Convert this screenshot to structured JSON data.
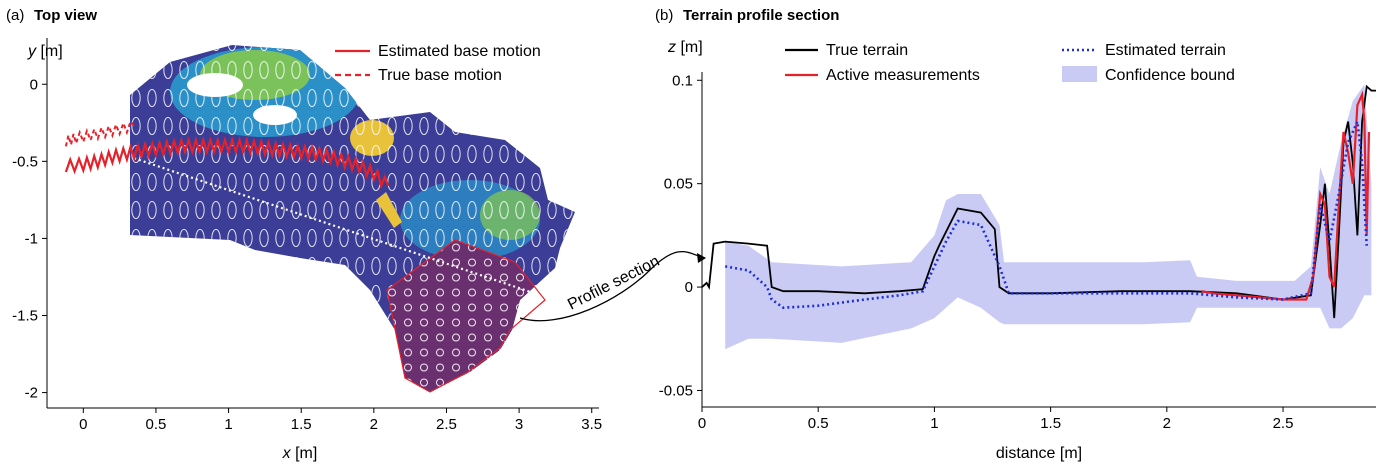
{
  "panels": {
    "a": {
      "prefix": "(a)",
      "title": "Top view",
      "xlabel_var": "x",
      "xlabel_unit": "[m]",
      "ylabel_var": "y",
      "ylabel_unit": "[m]",
      "annotation": "Profile section",
      "legend": [
        {
          "label": "Estimated base motion",
          "style": "solid"
        },
        {
          "label": "True base motion",
          "style": "dashed"
        }
      ]
    },
    "b": {
      "prefix": "(b)",
      "title": "Terrain profile section",
      "xlabel": "distance [m]",
      "ylabel_var": "z",
      "ylabel_unit": "[m]",
      "legend": [
        {
          "label": "True terrain",
          "style": "solid"
        },
        {
          "label": "Estimated terrain",
          "style": "dotted"
        },
        {
          "label": "Active measurements",
          "style": "solid"
        },
        {
          "label": "Confidence bound",
          "style": "band"
        }
      ]
    }
  },
  "colors": {
    "red": "#e8202a",
    "black": "#000000",
    "blue": "#1f2fd6",
    "band": "#c9cbf5",
    "map_low": "#3b3d96",
    "map_mid": "#2b8fc8",
    "map_high": "#7cc25a",
    "map_peak": "#e8c23a",
    "patch": "#6a2f6e"
  },
  "chart_data": [
    {
      "type": "line",
      "panel": "a",
      "title": "Top view",
      "xlabel": "x [m]",
      "ylabel": "y [m]",
      "xlim": [
        -0.25,
        3.55
      ],
      "ylim": [
        -2.1,
        0.3
      ],
      "xticks": [
        "0",
        "0.5",
        "1",
        "1.5",
        "2",
        "2.5",
        "3",
        "3.5"
      ],
      "yticks": [
        "0",
        "-0.5",
        "-1",
        "-1.5",
        "-2"
      ],
      "grid": false,
      "legend_position": "top-right",
      "series": [
        {
          "name": "Estimated base motion",
          "x": [
            -0.12,
            0.0,
            0.1,
            0.2,
            0.3,
            0.4,
            0.5,
            0.6,
            0.7,
            0.8,
            0.9,
            1.0,
            1.1,
            1.2,
            1.3,
            1.4,
            1.5,
            1.6,
            1.7,
            1.8,
            1.9,
            2.0,
            2.1
          ],
          "y": [
            -0.53,
            -0.52,
            -0.5,
            -0.47,
            -0.45,
            -0.43,
            -0.42,
            -0.41,
            -0.4,
            -0.4,
            -0.4,
            -0.4,
            -0.4,
            -0.41,
            -0.42,
            -0.43,
            -0.44,
            -0.45,
            -0.47,
            -0.5,
            -0.53,
            -0.58,
            -0.66
          ]
        },
        {
          "name": "True base motion",
          "x": [
            -0.12,
            -0.05,
            0.05,
            0.15,
            0.25,
            0.35
          ],
          "y": [
            -0.37,
            -0.35,
            -0.33,
            -0.31,
            -0.29,
            -0.27
          ]
        }
      ],
      "profile_section": {
        "x": [
          0.35,
          3.15
        ],
        "y": [
          -0.48,
          -1.37
        ]
      }
    },
    {
      "type": "line",
      "panel": "b",
      "title": "Terrain profile section",
      "xlabel": "distance [m]",
      "ylabel": "z [m]",
      "xlim": [
        0,
        2.9
      ],
      "ylim": [
        -0.058,
        0.104
      ],
      "xticks": [
        "0",
        "0.5",
        "1",
        "1.5",
        "2",
        "2.5"
      ],
      "yticks": [
        "0.1",
        "0.05",
        "0",
        "-0.05"
      ],
      "grid": false,
      "legend_position": "top",
      "series": [
        {
          "name": "True terrain",
          "x": [
            0.0,
            0.02,
            0.03,
            0.05,
            0.1,
            0.2,
            0.28,
            0.3,
            0.35,
            0.5,
            0.7,
            0.85,
            0.95,
            1.0,
            1.02,
            1.1,
            1.2,
            1.26,
            1.28,
            1.32,
            1.5,
            1.8,
            2.1,
            2.3,
            2.5,
            2.62,
            2.66,
            2.68,
            2.7,
            2.72,
            2.74,
            2.76,
            2.78,
            2.8,
            2.82,
            2.84,
            2.86,
            2.88,
            2.9
          ],
          "y": [
            0.0,
            0.002,
            0.0,
            0.021,
            0.022,
            0.021,
            0.02,
            0.0,
            -0.002,
            -0.002,
            -0.003,
            -0.002,
            -0.001,
            0.015,
            0.02,
            0.038,
            0.036,
            0.028,
            0.0,
            -0.003,
            -0.003,
            -0.002,
            -0.002,
            -0.003,
            -0.006,
            -0.004,
            0.03,
            0.05,
            0.02,
            -0.015,
            0.025,
            0.07,
            0.08,
            0.06,
            0.025,
            0.08,
            0.097,
            0.095,
            0.095
          ]
        },
        {
          "name": "Estimated terrain",
          "x": [
            0.1,
            0.2,
            0.28,
            0.3,
            0.35,
            0.5,
            0.7,
            0.85,
            0.95,
            1.0,
            1.05,
            1.1,
            1.2,
            1.28,
            1.32,
            1.5,
            1.8,
            2.1,
            2.3,
            2.5,
            2.62,
            2.66,
            2.7,
            2.74,
            2.78,
            2.82,
            2.84,
            2.86
          ],
          "y": [
            0.01,
            0.008,
            0.0,
            -0.006,
            -0.01,
            -0.009,
            -0.006,
            -0.004,
            -0.002,
            0.01,
            0.022,
            0.032,
            0.03,
            0.01,
            -0.003,
            -0.003,
            -0.003,
            -0.003,
            -0.005,
            -0.006,
            -0.003,
            0.04,
            0.022,
            0.045,
            0.07,
            0.08,
            0.06,
            0.02
          ]
        },
        {
          "name": "Active measurements",
          "x": [
            2.15,
            2.2,
            2.3,
            2.4,
            2.5,
            2.6,
            2.63,
            2.66,
            2.68,
            2.7,
            2.72,
            2.74,
            2.76,
            2.78,
            2.8,
            2.82,
            2.84,
            2.85,
            2.86,
            2.87
          ],
          "y": [
            -0.002,
            -0.003,
            -0.004,
            -0.005,
            -0.006,
            -0.006,
            0.005,
            0.045,
            0.04,
            0.005,
            0.0,
            0.04,
            0.075,
            0.065,
            0.05,
            0.088,
            0.093,
            0.08,
            0.025,
            0.075
          ]
        },
        {
          "name": "Confidence bound",
          "x": [
            0.1,
            0.2,
            0.3,
            0.6,
            0.9,
            1.0,
            1.05,
            1.1,
            1.2,
            1.28,
            1.3,
            1.6,
            1.9,
            2.1,
            2.13,
            2.3,
            2.55,
            2.62,
            2.66,
            2.7,
            2.75,
            2.8,
            2.85,
            2.88
          ],
          "upper": [
            0.022,
            0.02,
            0.012,
            0.01,
            0.012,
            0.025,
            0.042,
            0.045,
            0.045,
            0.03,
            0.012,
            0.012,
            0.012,
            0.013,
            0.005,
            0.003,
            0.003,
            0.01,
            0.058,
            0.045,
            0.07,
            0.09,
            0.098,
            0.05
          ],
          "lower": [
            -0.03,
            -0.025,
            -0.025,
            -0.027,
            -0.02,
            -0.015,
            -0.01,
            -0.005,
            -0.01,
            -0.017,
            -0.018,
            -0.018,
            -0.018,
            -0.017,
            -0.01,
            -0.01,
            -0.01,
            -0.01,
            -0.01,
            -0.02,
            -0.02,
            -0.015,
            -0.004,
            -0.004
          ]
        }
      ]
    }
  ]
}
